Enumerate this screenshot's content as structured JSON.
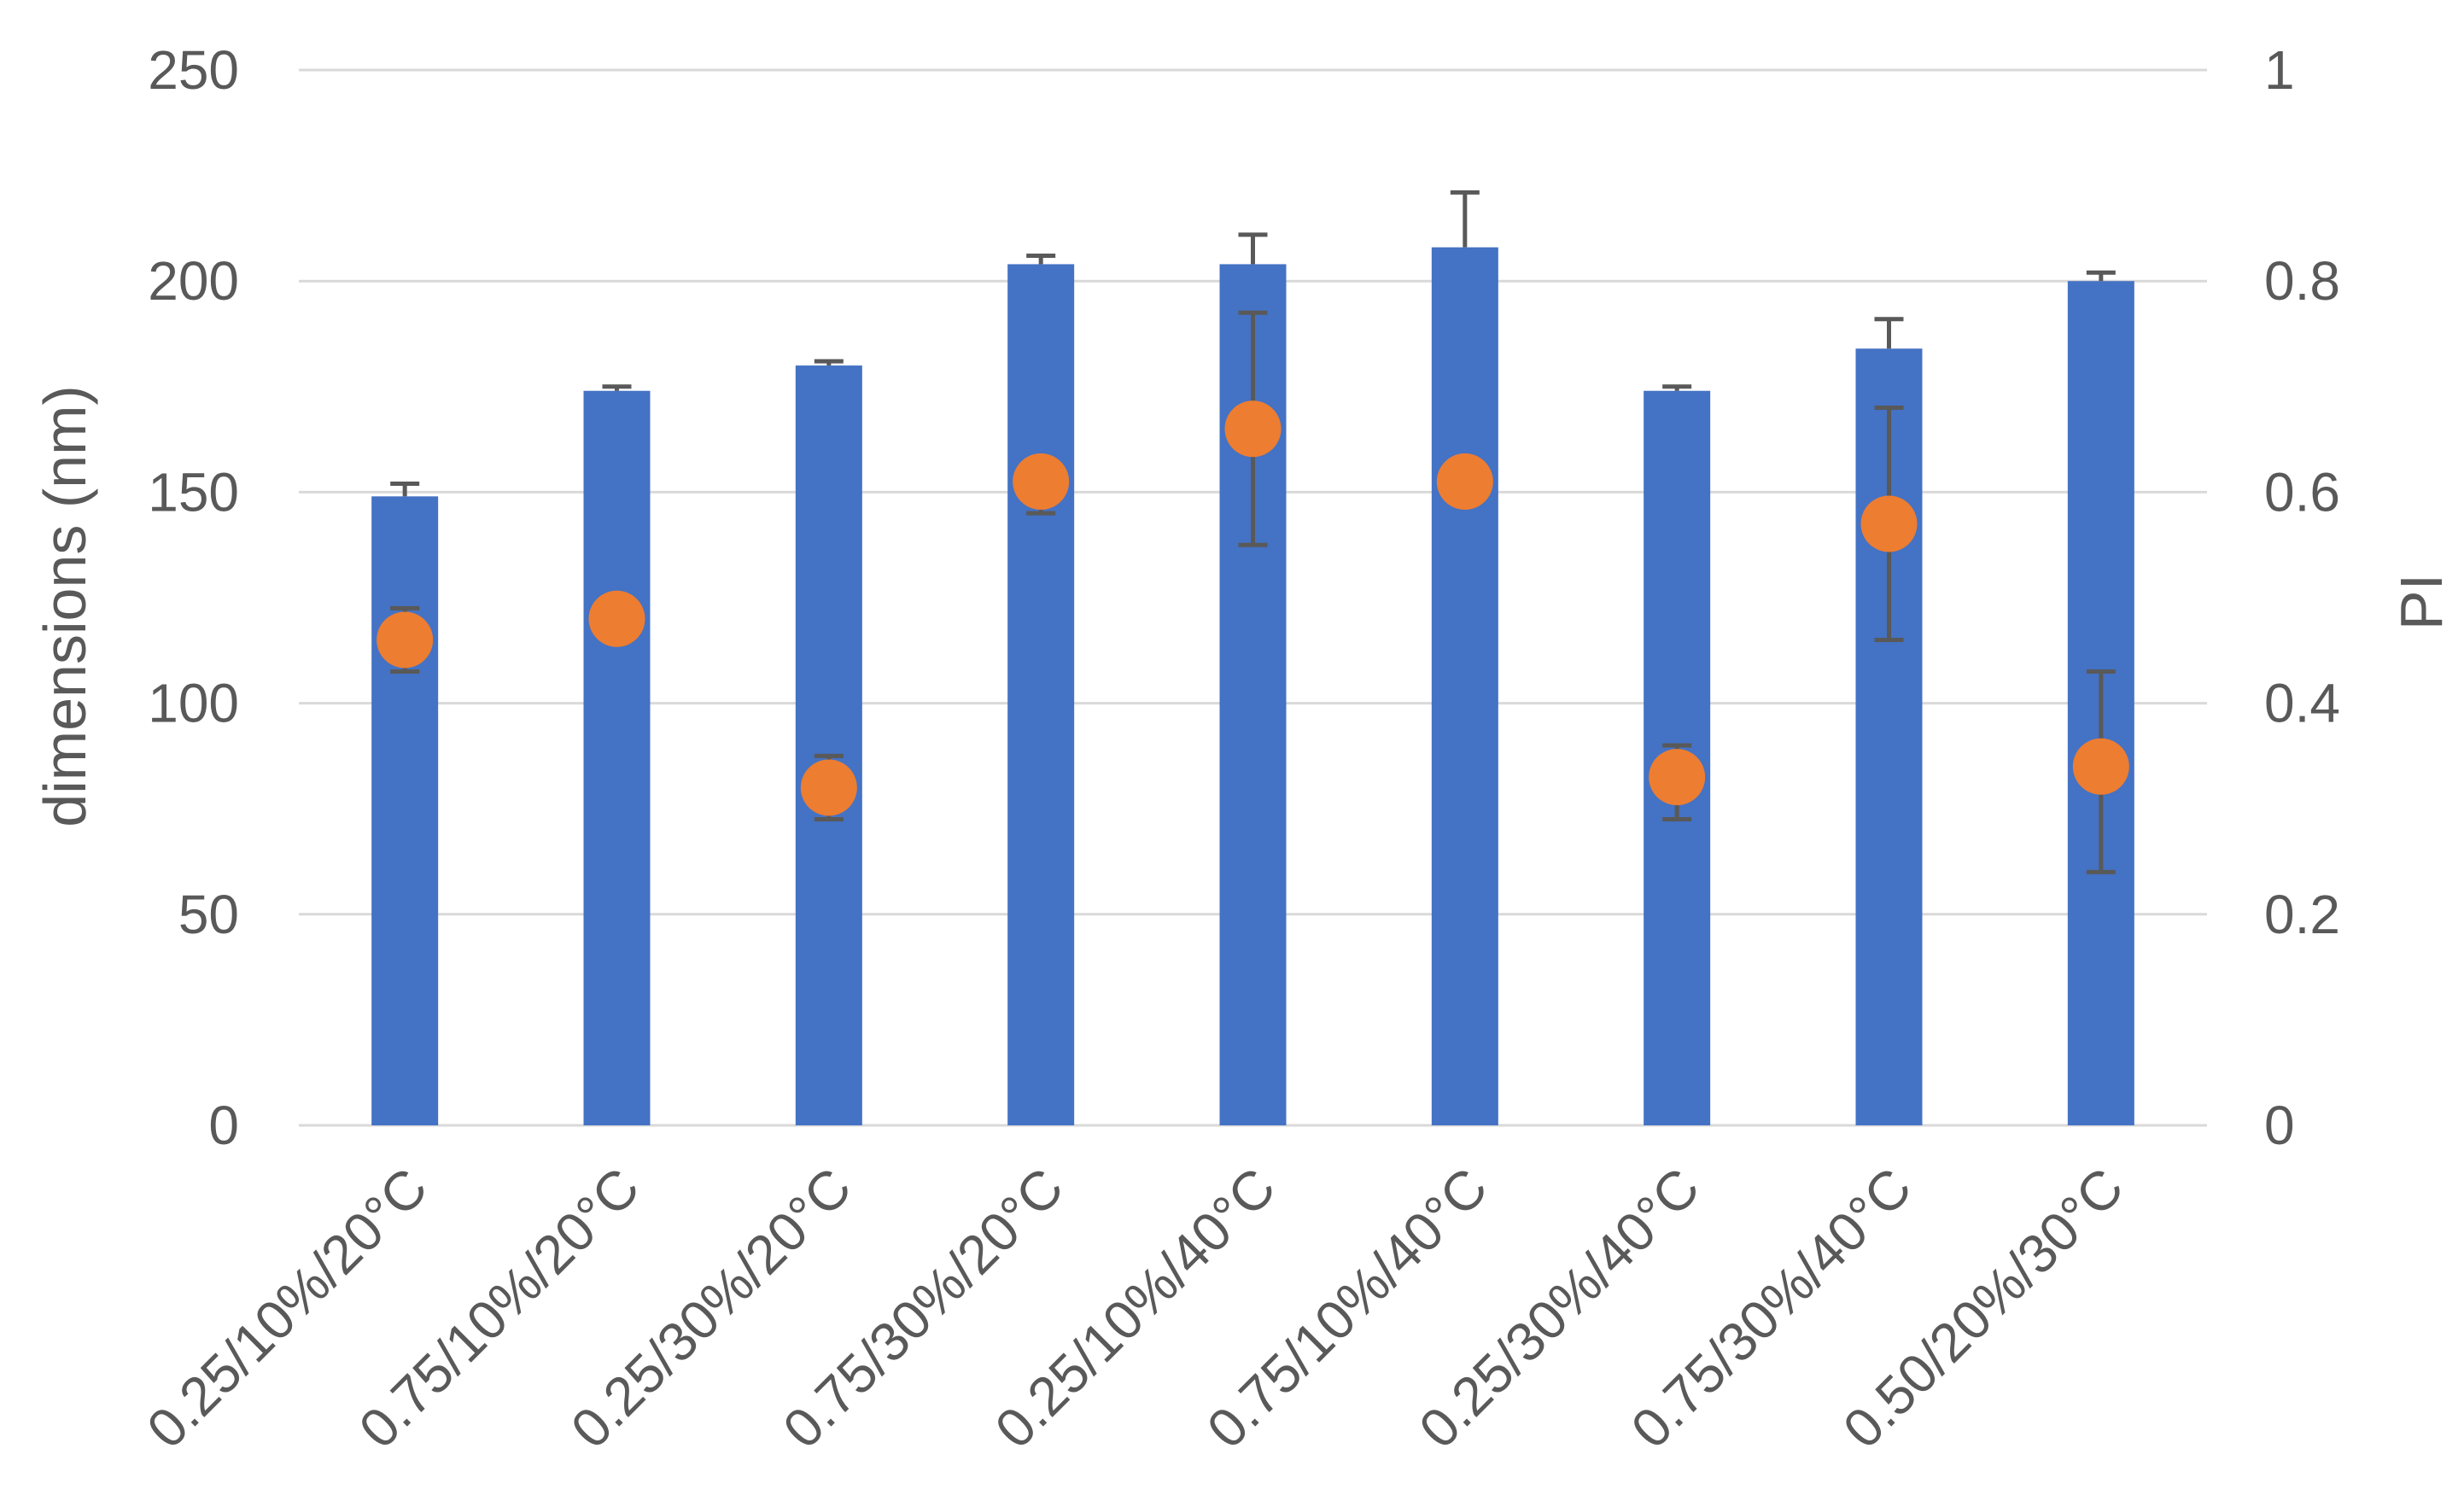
{
  "chart_data": {
    "type": "bar",
    "categories": [
      "0.25/10%/20°C",
      "0.75/10%/20°C",
      "0.25/30%/20°C",
      "0.75/30%/20°C",
      "0.25/10%/40°C",
      "0.75/10%/40°C",
      "0.25/30%/40°C",
      "0.75/30%/40°C",
      "0.50/20%/30°C"
    ],
    "series": [
      {
        "type": "bar",
        "axis": "left",
        "color": "#4472C4",
        "values": [
          149,
          174,
          180,
          204,
          204,
          208,
          174,
          184,
          200
        ],
        "error_plus": [
          3,
          1,
          1,
          2,
          7,
          13,
          1,
          7,
          2
        ],
        "error_minus": [
          0,
          0,
          0,
          0,
          0,
          0,
          0,
          0,
          0
        ]
      },
      {
        "type": "scatter",
        "axis": "right",
        "color": "#ED7D31",
        "values": [
          0.46,
          0.48,
          0.32,
          0.61,
          0.66,
          0.61,
          0.33,
          0.57,
          0.34
        ],
        "error_plus": [
          0.03,
          0.0,
          0.03,
          0.0,
          0.11,
          0.0,
          0.03,
          0.11,
          0.09
        ],
        "error_minus": [
          0.03,
          0.0,
          0.03,
          0.03,
          0.11,
          0.0,
          0.04,
          0.11,
          0.1
        ]
      }
    ],
    "ylabel": "dimensions (nm)",
    "y2label": "PI",
    "ylim": [
      0,
      250
    ],
    "y2lim": [
      0,
      1
    ],
    "yticks": [
      "0",
      "50",
      "100",
      "150",
      "200",
      "250"
    ],
    "y2ticks": [
      "0",
      "0.2",
      "0.4",
      "0.6",
      "0.8",
      "1"
    ],
    "grid": true,
    "error_bar_color": "#595959",
    "grid_color": "#D9D9D9"
  }
}
